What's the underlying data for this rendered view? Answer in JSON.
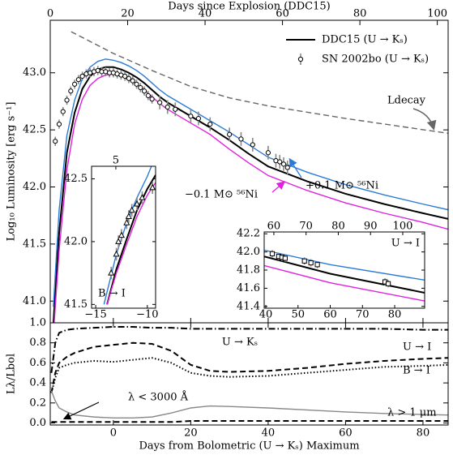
{
  "chart_data": [
    {
      "type": "line",
      "top_xlabel": "Days since Explosion (DDC15)",
      "top_xlim": [
        0,
        102.8
      ],
      "top_xticks": [
        0,
        20,
        40,
        60,
        80,
        100
      ],
      "xlim": [
        -16.3,
        86.5
      ],
      "xticks": [
        0,
        20,
        40,
        60,
        80
      ],
      "ylabel": "Log₁₀ Luminosity [erg s⁻¹]",
      "ylim": [
        40.81,
        43.46
      ],
      "yticks": [
        {
          "value": 41,
          "label": "41.0"
        },
        41.5,
        {
          "value": 42,
          "label": "42.0"
        },
        42.5,
        {
          "value": 43,
          "label": "43.0"
        }
      ],
      "legend": "upper right",
      "series": [
        {
          "name": "DDC15 (U → Kₛ)",
          "color": "#000000",
          "dash": "solid",
          "x": [
            -15.5,
            -14,
            -12,
            -10,
            -8,
            -6,
            -4,
            -2,
            0,
            2,
            4,
            6,
            8,
            10,
            12,
            14,
            16,
            18,
            20,
            25,
            30,
            35,
            40,
            50,
            60,
            70,
            80,
            86.5
          ],
          "values": [
            40.8,
            41.6,
            42.3,
            42.65,
            42.86,
            42.97,
            43.03,
            43.05,
            43.05,
            43.03,
            43.0,
            42.96,
            42.91,
            42.85,
            42.79,
            42.74,
            42.7,
            42.66,
            42.62,
            42.52,
            42.41,
            42.29,
            42.18,
            42.05,
            41.94,
            41.85,
            41.77,
            41.72
          ]
        },
        {
          "name": "+0.1 M⊙ ⁵⁶Ni",
          "color": "#2b7bd6",
          "dash": "solid",
          "x": [
            -15.5,
            -14,
            -12,
            -10,
            -8,
            -6,
            -4,
            -2,
            0,
            2,
            4,
            6,
            8,
            10,
            12,
            14,
            16,
            18,
            20,
            25,
            30,
            35,
            40,
            50,
            60,
            70,
            80,
            86.5
          ],
          "values": [
            40.95,
            41.8,
            42.45,
            42.76,
            42.95,
            43.05,
            43.1,
            43.12,
            43.11,
            43.09,
            43.06,
            43.02,
            42.97,
            42.91,
            42.85,
            42.8,
            42.76,
            42.72,
            42.68,
            42.58,
            42.48,
            42.37,
            42.26,
            42.13,
            42.02,
            41.93,
            41.85,
            41.8
          ]
        },
        {
          "name": "−0.1 M⊙ ⁵⁶Ni",
          "color": "#e020e0",
          "dash": "solid",
          "x": [
            -15.5,
            -14,
            -12,
            -10,
            -8,
            -6,
            -4,
            -2,
            0,
            2,
            4,
            6,
            8,
            10,
            12,
            14,
            16,
            18,
            20,
            25,
            30,
            35,
            40,
            50,
            60,
            70,
            80,
            86.5
          ],
          "values": [
            40.7,
            41.45,
            42.15,
            42.55,
            42.77,
            42.89,
            42.95,
            42.98,
            42.99,
            42.97,
            42.94,
            42.9,
            42.85,
            42.79,
            42.73,
            42.68,
            42.64,
            42.6,
            42.56,
            42.46,
            42.33,
            42.21,
            42.1,
            41.97,
            41.86,
            41.77,
            41.69,
            41.63
          ]
        },
        {
          "name": "Ldecay",
          "color": "#666666",
          "dash": "dashed",
          "x": [
            -10.9,
            0,
            10,
            20,
            30,
            40,
            60,
            86.5
          ],
          "values": [
            43.36,
            43.17,
            43.02,
            42.88,
            42.78,
            42.71,
            42.6,
            42.47
          ]
        },
        {
          "name": "SN 2002bo (U → Kₛ)",
          "color": "#000000",
          "marker": "o",
          "error_color": "#888888",
          "x": [
            -15,
            -14,
            -13,
            -12,
            -11,
            -10,
            -9,
            -8,
            -7,
            -6,
            -5,
            -4,
            -3,
            -2,
            -1,
            0,
            1,
            2,
            3,
            4,
            5,
            6,
            7,
            8,
            9,
            10,
            12,
            14,
            16,
            20,
            22,
            25,
            30,
            33,
            36,
            40,
            42,
            43,
            44,
            45
          ],
          "values": [
            42.4,
            42.55,
            42.66,
            42.76,
            42.84,
            42.9,
            42.94,
            42.97,
            42.99,
            43.0,
            43.01,
            43.02,
            43.01,
            43.01,
            43.0,
            43.0,
            42.99,
            42.98,
            42.97,
            42.95,
            42.93,
            42.9,
            42.87,
            42.84,
            42.8,
            42.77,
            42.74,
            42.7,
            42.68,
            42.62,
            42.6,
            42.55,
            42.46,
            42.42,
            42.37,
            42.3,
            42.23,
            42.22,
            42.2,
            42.17
          ],
          "errors": [
            0.04,
            0.04,
            0.04,
            0.04,
            0.04,
            0.04,
            0.04,
            0.04,
            0.04,
            0.04,
            0.04,
            0.04,
            0.04,
            0.04,
            0.04,
            0.04,
            0.04,
            0.04,
            0.04,
            0.04,
            0.04,
            0.04,
            0.04,
            0.04,
            0.04,
            0.04,
            0.06,
            0.06,
            0.06,
            0.06,
            0.06,
            0.06,
            0.06,
            0.06,
            0.06,
            0.06,
            0.06,
            0.06,
            0.06,
            0.06
          ]
        }
      ]
    },
    {
      "type": "line",
      "xlabel": "Days from Bolometric (U → Kₛ) Maximum",
      "xlim": [
        -16.3,
        86.5
      ],
      "xticks": [
        0,
        20,
        40,
        60,
        80
      ],
      "ylabel": "Lλ/Lbol",
      "ylim": [
        -0.02,
        1.0
      ],
      "yticks": [
        {
          "value": 0,
          "label": "0.0"
        },
        0.2,
        0.4,
        0.6,
        0.8,
        {
          "value": 1,
          "label": "1.0"
        }
      ],
      "series": [
        {
          "name": "U → Kₛ",
          "color": "#000000",
          "dash": "dashdot",
          "x": [
            -16,
            -15,
            -14,
            -12,
            -10,
            -5,
            0,
            5,
            10,
            15,
            20,
            25,
            30,
            40,
            50,
            60,
            70,
            80,
            86.5
          ],
          "values": [
            0.5,
            0.8,
            0.9,
            0.93,
            0.94,
            0.95,
            0.96,
            0.96,
            0.95,
            0.95,
            0.94,
            0.94,
            0.94,
            0.94,
            0.94,
            0.94,
            0.94,
            0.93,
            0.93
          ]
        },
        {
          "name": "U → I",
          "color": "#000000",
          "dash": "dashed",
          "x": [
            -16,
            -15,
            -14,
            -12,
            -10,
            -5,
            0,
            5,
            10,
            15,
            20,
            25,
            30,
            40,
            50,
            60,
            70,
            80,
            86.5
          ],
          "values": [
            0.3,
            0.5,
            0.6,
            0.66,
            0.7,
            0.76,
            0.78,
            0.8,
            0.79,
            0.72,
            0.58,
            0.52,
            0.51,
            0.52,
            0.55,
            0.59,
            0.62,
            0.64,
            0.65
          ]
        },
        {
          "name": "B → I",
          "color": "#000000",
          "dash": "dotted",
          "x": [
            -16,
            -15,
            -14,
            -12,
            -10,
            -5,
            0,
            5,
            10,
            15,
            20,
            25,
            30,
            40,
            50,
            60,
            70,
            80,
            86.5
          ],
          "values": [
            0.3,
            0.45,
            0.55,
            0.58,
            0.6,
            0.62,
            0.61,
            0.63,
            0.65,
            0.6,
            0.5,
            0.47,
            0.46,
            0.47,
            0.5,
            0.53,
            0.56,
            0.57,
            0.58
          ]
        },
        {
          "name": "λ < 3000 Å",
          "color": "#888888",
          "dash": "solid",
          "x": [
            -16,
            -15,
            -14,
            -12,
            -10,
            -5,
            0,
            5,
            10,
            15,
            20,
            25,
            30,
            40,
            50,
            60,
            70,
            80,
            86.5
          ],
          "values": [
            0.32,
            0.22,
            0.15,
            0.11,
            0.08,
            0.06,
            0.05,
            0.05,
            0.06,
            0.1,
            0.15,
            0.17,
            0.165,
            0.15,
            0.13,
            0.11,
            0.095,
            0.085,
            0.08
          ]
        },
        {
          "name": "λ > 1 μm",
          "color": "#000000",
          "dash": "dashed",
          "x": [
            -16,
            -15,
            -14,
            -12,
            -10,
            -5,
            0,
            5,
            10,
            15,
            20,
            25,
            30,
            40,
            50,
            60,
            70,
            80,
            86.5
          ],
          "values": [
            0.01,
            0.01,
            0.01,
            0.01,
            0.01,
            0.01,
            0.01,
            0.01,
            0.01,
            0.01,
            0.02,
            0.02,
            0.02,
            0.02,
            0.02,
            0.02,
            0.02,
            0.02,
            0.02
          ]
        }
      ]
    },
    {
      "type": "line",
      "label": "B → I",
      "xlim": [
        -15.4,
        -9.2
      ],
      "xticks": [
        {
          "value": -15,
          "label": "−15"
        },
        {
          "value": -10,
          "label": "−10"
        }
      ],
      "top_xlim": [
        2.65,
        8.85
      ],
      "top_xticks": [
        5
      ],
      "ylim": [
        41.47,
        42.6
      ],
      "yticks": [
        41.5,
        {
          "value": 42,
          "label": "42.0"
        },
        42.5
      ],
      "series": [
        {
          "color": "#2b7bd6",
          "dash": "solid",
          "x": [
            -14.2,
            -13,
            -12,
            -11,
            -10,
            -9.6
          ],
          "values": [
            41.5,
            41.9,
            42.15,
            42.35,
            42.52,
            42.6
          ]
        },
        {
          "color": "#000000",
          "dash": "solid",
          "x": [
            -13.9,
            -13,
            -12,
            -11,
            -10,
            -9.2
          ],
          "values": [
            41.5,
            41.78,
            42.02,
            42.25,
            42.42,
            42.53
          ]
        },
        {
          "color": "#e020e0",
          "dash": "solid",
          "x": [
            -13.9,
            -13,
            -12,
            -11,
            -10,
            -9.2
          ],
          "values": [
            41.5,
            41.75,
            41.98,
            42.2,
            42.37,
            42.47
          ]
        },
        {
          "color": "#000000",
          "marker": "^",
          "error_color": "#888888",
          "x": [
            -13.5,
            -13,
            -12.8,
            -12.5,
            -12,
            -11.8,
            -11.5,
            -11,
            -10.5,
            -9.5
          ],
          "values": [
            41.75,
            41.9,
            42.0,
            42.05,
            42.15,
            42.2,
            42.25,
            42.3,
            42.35,
            42.43
          ],
          "errors": [
            0.05,
            0.05,
            0.05,
            0.05,
            0.05,
            0.05,
            0.05,
            0.05,
            0.05,
            0.05
          ]
        }
      ]
    },
    {
      "type": "line",
      "label": "U → I",
      "xlim": [
        39.5,
        89.3
      ],
      "xticks": [
        40,
        50,
        60,
        70,
        80
      ],
      "top_xlim": [
        57,
        106.8
      ],
      "top_xticks": [
        60,
        70,
        80,
        90,
        100
      ],
      "ylim": [
        41.38,
        42.22
      ],
      "yticks": [
        41.4,
        41.6,
        41.8,
        {
          "value": 42,
          "label": "42.0"
        },
        42.2
      ],
      "series": [
        {
          "color": "#2b7bd6",
          "dash": "solid",
          "x": [
            39.5,
            60,
            89.3
          ],
          "values": [
            42.02,
            41.86,
            41.69
          ]
        },
        {
          "color": "#000000",
          "dash": "solid",
          "x": [
            39.5,
            60,
            89.3
          ],
          "values": [
            41.95,
            41.76,
            41.55
          ]
        },
        {
          "color": "#e020e0",
          "dash": "solid",
          "x": [
            39.5,
            60,
            89.3
          ],
          "values": [
            41.85,
            41.66,
            41.46
          ]
        },
        {
          "color": "#000000",
          "marker": "s",
          "error_color": "#888888",
          "x": [
            42,
            44,
            45,
            46,
            52,
            54,
            56,
            77,
            78
          ],
          "values": [
            41.98,
            41.95,
            41.94,
            41.93,
            41.9,
            41.88,
            41.86,
            41.67,
            41.65
          ],
          "errors": [
            0.04,
            0.04,
            0.04,
            0.04,
            0.04,
            0.04,
            0.04,
            0.04,
            0.04
          ]
        }
      ]
    }
  ]
}
